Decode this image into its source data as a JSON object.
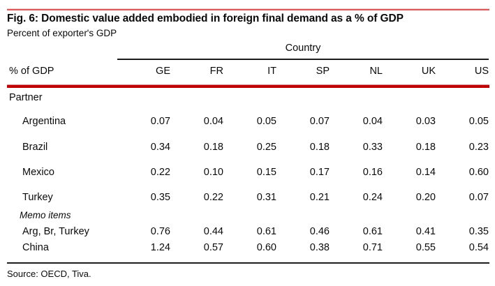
{
  "figure": {
    "title": "Fig. 6: Domestic value added embodied in foreign final demand as a % of GDP",
    "subtitle": "Percent of exporter's GDP",
    "source": "Source: OECD, Tiva."
  },
  "table": {
    "group_header": "Country",
    "corner_label": "% of GDP",
    "section_label": "Partner",
    "columns": [
      "GE",
      "FR",
      "IT",
      "SP",
      "NL",
      "UK",
      "US"
    ],
    "rows": [
      {
        "label": "Argentina",
        "values": [
          "0.07",
          "0.04",
          "0.05",
          "0.07",
          "0.04",
          "0.03",
          "0.05"
        ]
      },
      {
        "label": "Brazil",
        "values": [
          "0.34",
          "0.18",
          "0.25",
          "0.18",
          "0.33",
          "0.18",
          "0.23"
        ]
      },
      {
        "label": "Mexico",
        "values": [
          "0.22",
          "0.10",
          "0.15",
          "0.17",
          "0.16",
          "0.14",
          "0.60"
        ]
      },
      {
        "label": "Turkey",
        "values": [
          "0.35",
          "0.22",
          "0.31",
          "0.21",
          "0.24",
          "0.20",
          "0.07"
        ]
      }
    ],
    "memo_label": "Memo items",
    "memo_rows": [
      {
        "label": "Arg, Br, Turkey",
        "values": [
          "0.76",
          "0.44",
          "0.61",
          "0.46",
          "0.61",
          "0.41",
          "0.35"
        ]
      },
      {
        "label": "China",
        "values": [
          "1.24",
          "0.57",
          "0.60",
          "0.38",
          "0.71",
          "0.55",
          "0.54"
        ]
      }
    ]
  },
  "colors": {
    "accent_light_red": "#d85c5e",
    "accent_dark_red": "#c00000",
    "rule_black": "#1c1c1c",
    "text": "#0a0a0a",
    "background": "#ffffff"
  }
}
